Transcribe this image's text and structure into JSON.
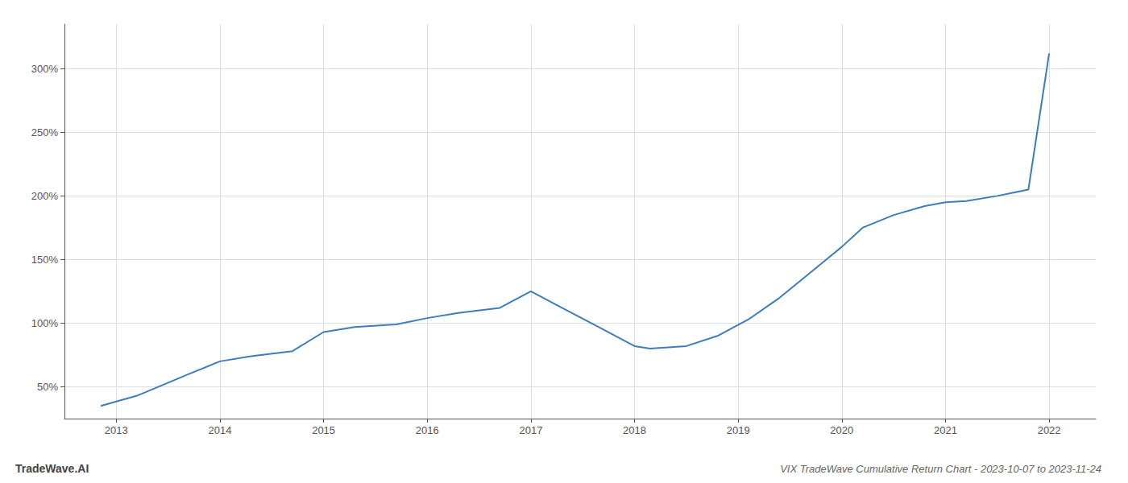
{
  "chart_data": {
    "type": "line",
    "title": "VIX TradeWave Cumulative Return Chart - 2023-10-07 to 2023-11-24",
    "annotations": [
      {
        "text": "TradeWave.AI"
      }
    ],
    "x": [
      2012.85,
      2013.2,
      2013.7,
      2014.0,
      2014.3,
      2014.7,
      2015.0,
      2015.3,
      2015.7,
      2016.0,
      2016.3,
      2016.7,
      2017.0,
      2017.3,
      2017.7,
      2018.0,
      2018.15,
      2018.5,
      2018.8,
      2019.1,
      2019.4,
      2019.7,
      2020.0,
      2020.2,
      2020.5,
      2020.8,
      2021.0,
      2021.2,
      2021.5,
      2021.8,
      2022.0
    ],
    "values": [
      35,
      43,
      60,
      70,
      74,
      78,
      93,
      97,
      99,
      104,
      108,
      112,
      125,
      112,
      95,
      82,
      80,
      82,
      90,
      103,
      120,
      140,
      160,
      175,
      185,
      192,
      195,
      196,
      200,
      205,
      312
    ],
    "color": "#3a7ebf",
    "xlim": [
      2012.5,
      2022.45
    ],
    "ylim": [
      25,
      335
    ],
    "xticks": [
      2013,
      2014,
      2015,
      2016,
      2017,
      2018,
      2019,
      2020,
      2021,
      2022
    ],
    "yticks": [
      {
        "value": 50,
        "label": "50%"
      },
      {
        "value": 100,
        "label": "100%"
      },
      {
        "value": 150,
        "label": "150%"
      },
      {
        "value": 200,
        "label": "200%"
      },
      {
        "value": 250,
        "label": "250%"
      },
      {
        "value": 300,
        "label": "300%"
      }
    ],
    "grid": true
  }
}
